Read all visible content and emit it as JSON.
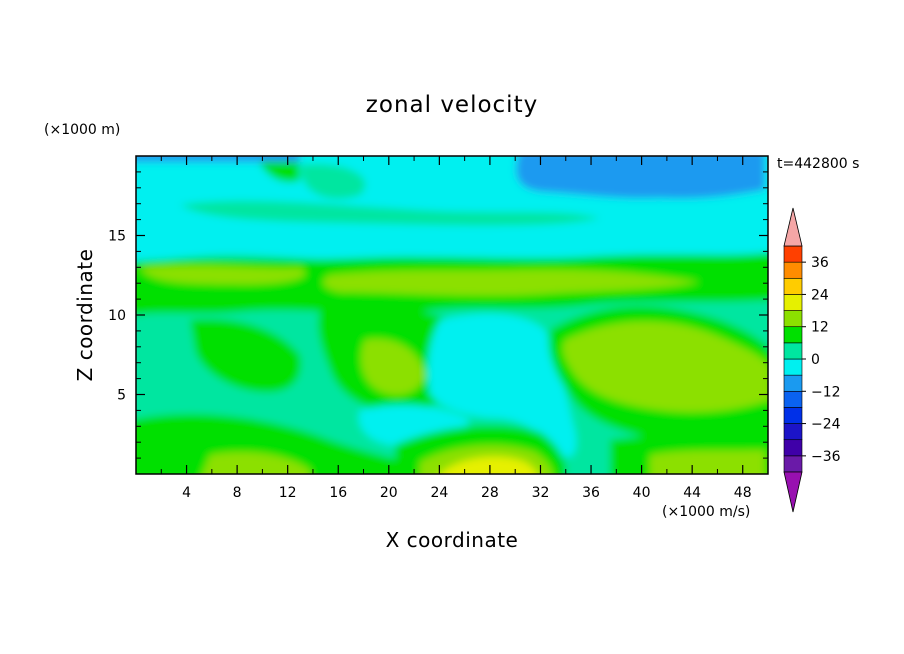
{
  "chart_data": {
    "type": "heatmap",
    "title": "zonal velocity",
    "xlabel": "X coordinate",
    "ylabel": "Z coordinate",
    "y_unit_label": "(×1000 m)",
    "x_unit_label": "(×1000 m/s)",
    "time_label": "t=442800 s",
    "xlim": [
      0,
      50
    ],
    "ylim": [
      0,
      20
    ],
    "x_ticks": [
      "4",
      "8",
      "12",
      "16",
      "20",
      "24",
      "28",
      "32",
      "36",
      "40",
      "44",
      "48"
    ],
    "y_ticks": [
      "5",
      "10",
      "15"
    ],
    "colorbar": {
      "ticks": [
        "36",
        "24",
        "12",
        "0",
        "−12",
        "−24",
        "−36"
      ],
      "levels": [
        -42,
        -36,
        -30,
        -24,
        -18,
        -12,
        -6,
        0,
        6,
        12,
        18,
        24,
        30,
        36,
        42
      ],
      "colors": [
        "#6a1aa8",
        "#3f00a8",
        "#1c14c8",
        "#0030e8",
        "#0a62f0",
        "#1a9af0",
        "#00f0f0",
        "#00e6a0",
        "#00e000",
        "#8ce000",
        "#e6f000",
        "#ffcc00",
        "#ff8c00",
        "#ff4000",
        "#e61e1e"
      ],
      "extend_low_color": "#9810b0",
      "extend_high_color": "#f5a6a6"
    },
    "grid": false,
    "legend": "right"
  }
}
